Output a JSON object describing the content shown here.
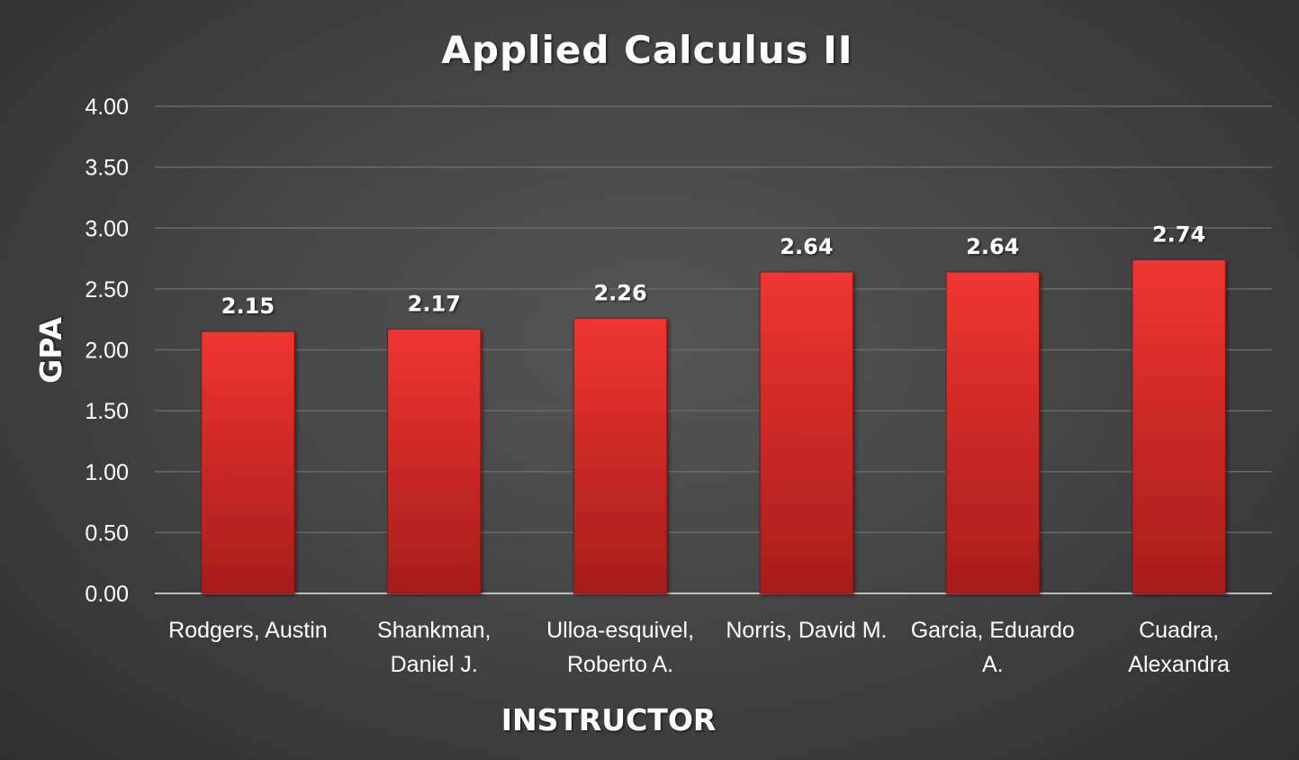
{
  "chart_data": {
    "type": "bar",
    "title": "Applied Calculus II",
    "xlabel": "INSTRUCTOR",
    "ylabel": "GPA",
    "categories": [
      [
        "Rodgers, Austin"
      ],
      [
        "Shankman,",
        "Daniel J."
      ],
      [
        "Ulloa-esquivel,",
        "Roberto A."
      ],
      [
        "Norris, David M."
      ],
      [
        "Garcia, Eduardo",
        "A."
      ],
      [
        "Cuadra,",
        "Alexandra"
      ]
    ],
    "values": [
      2.15,
      2.17,
      2.26,
      2.64,
      2.64,
      2.74
    ],
    "data_labels": [
      "2.15",
      "2.17",
      "2.26",
      "2.64",
      "2.64",
      "2.74"
    ],
    "ylim": [
      0,
      4
    ],
    "yticks": [
      0,
      0.5,
      1,
      1.5,
      2,
      2.5,
      3,
      3.5,
      4
    ],
    "ytick_labels": [
      "0.00",
      "0.50",
      "1.00",
      "1.50",
      "2.00",
      "2.50",
      "3.00",
      "3.50",
      "4.00"
    ],
    "grid": true,
    "legend": "none",
    "colors": {
      "bar_top": "#ef3530",
      "bar_bottom": "#a71d1b",
      "background": "#474747",
      "text": "#ffffff"
    }
  }
}
